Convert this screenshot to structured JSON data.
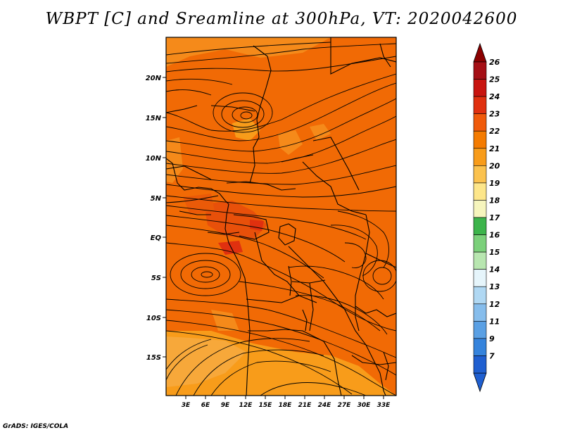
{
  "title": "WBPT [C] and Sreamline at 300hPa, VT: 2020042600",
  "footer": "GrADS: IGES/COLA",
  "map": {
    "variable": "WBPT [C]",
    "overlay": "Streamline",
    "level": "300hPa",
    "valid_time": "2020042600",
    "lat_labels": [
      "20N",
      "15N",
      "10N",
      "5N",
      "EQ",
      "5S",
      "10S",
      "15S"
    ],
    "lon_labels": [
      "3E",
      "6E",
      "9E",
      "12E",
      "15E",
      "18E",
      "21E",
      "24E",
      "27E",
      "30E",
      "33E"
    ]
  },
  "colorbar": {
    "labels": [
      "26",
      "25",
      "24",
      "23",
      "22",
      "21",
      "20",
      "19",
      "18",
      "17",
      "16",
      "15",
      "14",
      "13",
      "12",
      "11",
      "9",
      "7"
    ],
    "colors": [
      "#a50f15",
      "#c8140f",
      "#e0300f",
      "#f05a0a",
      "#f47b00",
      "#f89c1a",
      "#fbc24e",
      "#fde68a",
      "#f6f5bd",
      "#3cb44b",
      "#7bd07a",
      "#b8e6b0",
      "#e6f5fb",
      "#b0d8f3",
      "#86bdec",
      "#5aa0e4",
      "#3583dc",
      "#1f5fd0"
    ],
    "top_arrow_color": "#8b0000",
    "bottom_arrow_color": "#1f5fd0"
  }
}
